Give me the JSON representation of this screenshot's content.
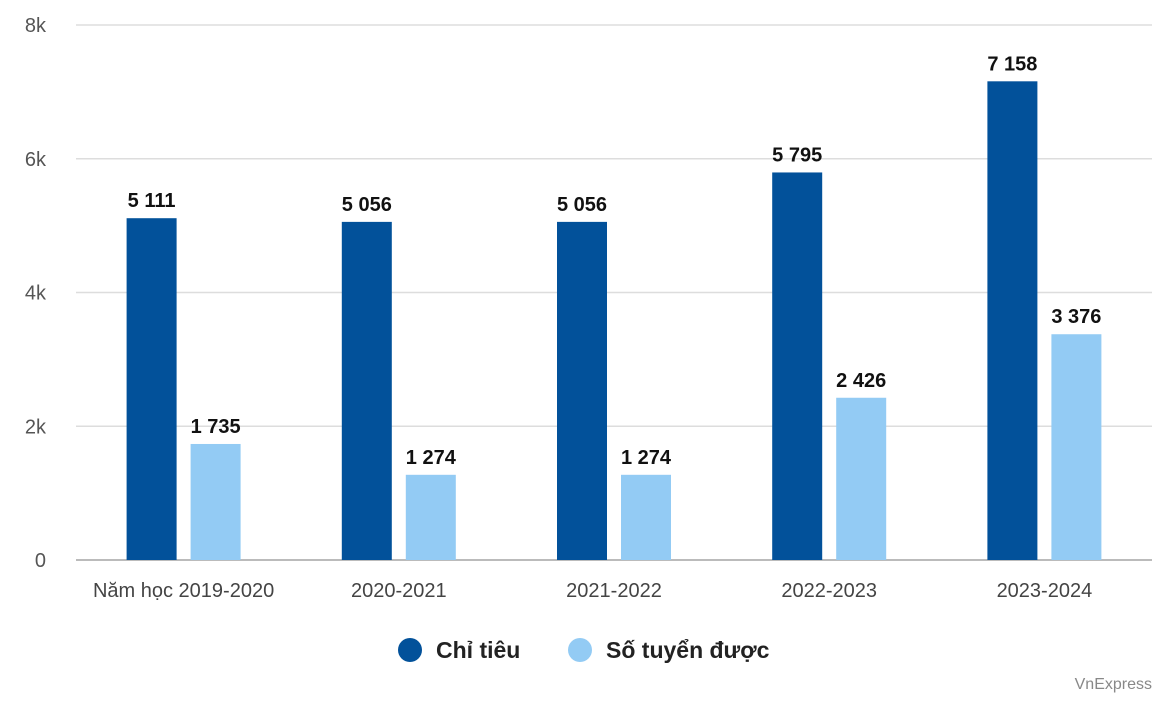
{
  "chart_data": {
    "type": "bar",
    "categories": [
      "Năm học 2019-2020",
      "2020-2021",
      "2021-2022",
      "2022-2023",
      "2023-2024"
    ],
    "series": [
      {
        "name": "Chỉ tiêu",
        "values": [
          5111,
          5056,
          5056,
          5795,
          7158
        ],
        "labels": [
          "5 111",
          "5 056",
          "5 056",
          "5 795",
          "7 158"
        ],
        "color": "#02519a"
      },
      {
        "name": "Số tuyển được",
        "values": [
          1735,
          1274,
          1274,
          2426,
          3376
        ],
        "labels": [
          "1 735",
          "1 274",
          "1 274",
          "2 426",
          "3 376"
        ],
        "color": "#93cbf4"
      }
    ],
    "ylim": [
      0,
      8000
    ],
    "yticks": [
      0,
      2000,
      4000,
      6000,
      8000
    ],
    "ytick_labels": [
      "0",
      "2k",
      "4k",
      "6k",
      "8k"
    ],
    "grid": true,
    "legend_position": "bottom"
  },
  "credit": "VnExpress"
}
